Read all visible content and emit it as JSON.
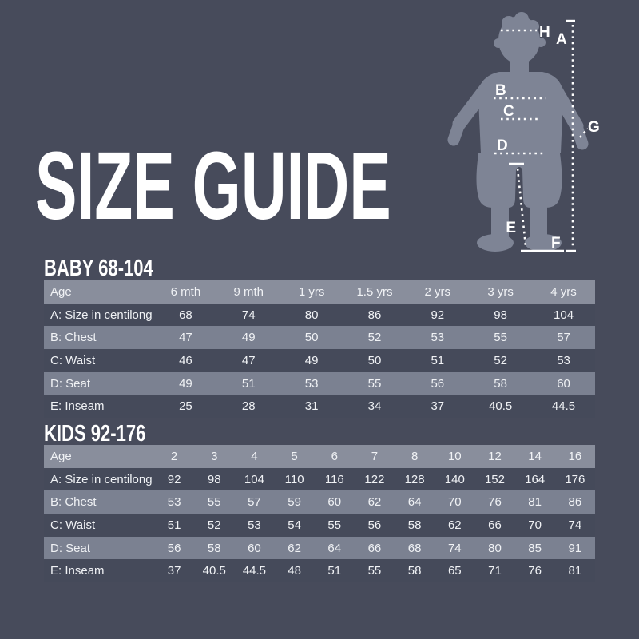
{
  "title": "SIZE GUIDE",
  "colors": {
    "background": "#474B5B",
    "figure": "#7E8495",
    "headerRow": "#898E9C",
    "stripeRow": "#7B8191",
    "darkRow": "#454A5A",
    "text": "#F2F3F6"
  },
  "figure": {
    "description": "child silhouette with measurement lines",
    "annotations": {
      "A": "A",
      "B": "B",
      "C": "C",
      "D": "D",
      "E": "E",
      "F": "F",
      "G": "G",
      "H": "H"
    }
  },
  "tables": [
    {
      "heading": "BABY 68-104",
      "columns": [
        "Age",
        "6 mth",
        "9 mth",
        "1 yrs",
        "1.5 yrs",
        "2 yrs",
        "3 yrs",
        "4 yrs"
      ],
      "rows": [
        {
          "label": "A: Size in centilong",
          "values": [
            68,
            74,
            80,
            86,
            92,
            98,
            104
          ]
        },
        {
          "label": "B: Chest",
          "values": [
            47,
            49,
            50,
            52,
            53,
            55,
            57
          ]
        },
        {
          "label": "C: Waist",
          "values": [
            46,
            47,
            49,
            50,
            51,
            52,
            53
          ]
        },
        {
          "label": "D: Seat",
          "values": [
            49,
            51,
            53,
            55,
            56,
            58,
            60
          ]
        },
        {
          "label": "E: Inseam",
          "values": [
            25,
            28,
            31,
            34,
            37,
            40.5,
            44.5
          ]
        }
      ]
    },
    {
      "heading": "KIDS 92-176",
      "columns": [
        "Age",
        "2",
        "3",
        "4",
        "5",
        "6",
        "7",
        "8",
        "10",
        "12",
        "14",
        "16"
      ],
      "rows": [
        {
          "label": "A: Size in centilong",
          "values": [
            92,
            98,
            104,
            110,
            116,
            122,
            128,
            140,
            152,
            164,
            176
          ]
        },
        {
          "label": "B: Chest",
          "values": [
            53,
            55,
            57,
            59,
            60,
            62,
            64,
            70,
            76,
            81,
            86
          ]
        },
        {
          "label": "C: Waist",
          "values": [
            51,
            52,
            53,
            54,
            55,
            56,
            58,
            62,
            66,
            70,
            74
          ]
        },
        {
          "label": "D: Seat",
          "values": [
            56,
            58,
            60,
            62,
            64,
            66,
            68,
            74,
            80,
            85,
            91
          ]
        },
        {
          "label": "E: Inseam",
          "values": [
            37,
            40.5,
            44.5,
            48,
            51,
            55,
            58,
            65,
            71,
            76,
            81
          ]
        }
      ]
    }
  ]
}
